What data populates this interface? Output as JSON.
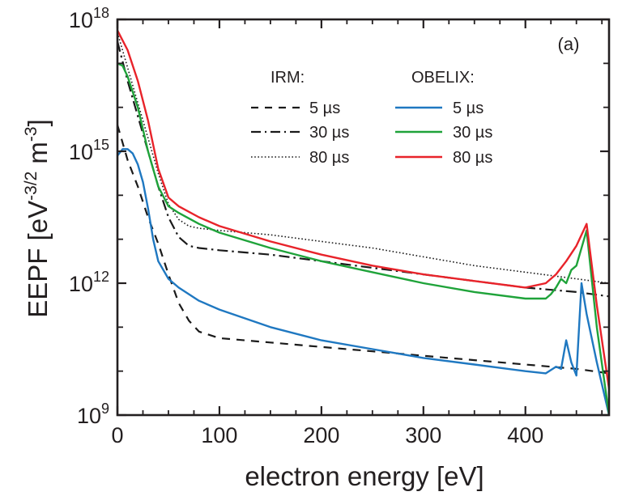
{
  "chart_data": {
    "type": "line",
    "title": "",
    "panel_label": "(a)",
    "xlabel": "electron energy [eV]",
    "ylabel": {
      "base": "EEPF [eV",
      "sup1": "-3/2",
      "mid": " m",
      "sup2": "-3",
      "end": "]"
    },
    "xscale": "linear",
    "yscale": "log",
    "xlim": [
      0,
      482
    ],
    "ylim": [
      1000000000.0,
      1e+18
    ],
    "xticks": [
      0,
      100,
      200,
      300,
      400
    ],
    "xtick_labels": [
      "0",
      "100",
      "200",
      "300",
      "400"
    ],
    "x_minor_step": 25,
    "yticks": [
      {
        "value": 1000000000.0,
        "base": "10",
        "exp": "9"
      },
      {
        "value": 1000000000000.0,
        "base": "10",
        "exp": "12"
      },
      {
        "value": 1000000000000000.0,
        "base": "10",
        "exp": "15"
      },
      {
        "value": 1e+18,
        "base": "10",
        "exp": "18"
      }
    ],
    "y_minor_exponents": [
      10,
      11,
      13,
      14,
      16,
      17
    ],
    "grid": false,
    "legend": {
      "position": "top-right",
      "groups": [
        {
          "title": "IRM:",
          "entries": [
            {
              "label": "5 µs",
              "series": "IRM 5 µs"
            },
            {
              "label": "30 µs",
              "series": "IRM 30 µs"
            },
            {
              "label": "80 µs",
              "series": "IRM 80 µs"
            }
          ]
        },
        {
          "title": "OBELIX:",
          "entries": [
            {
              "label": "5 µs",
              "series": "OBELIX 5 µs"
            },
            {
              "label": "30 µs",
              "series": "OBELIX 30 µs"
            },
            {
              "label": "80 µs",
              "series": "OBELIX 80 µs"
            }
          ]
        }
      ]
    },
    "series": [
      {
        "name": "IRM 5 µs",
        "color": "#1a1a1a",
        "style": "dashed",
        "x": [
          0,
          10,
          20,
          30,
          40,
          50,
          60,
          70,
          80,
          100,
          150,
          200,
          250,
          300,
          350,
          400,
          450,
          482
        ],
        "log10y": [
          15.6,
          14.8,
          14.2,
          13.5,
          12.9,
          12.2,
          11.55,
          11.15,
          10.9,
          10.75,
          10.65,
          10.55,
          10.45,
          10.35,
          10.25,
          10.15,
          10.05,
          9.95
        ]
      },
      {
        "name": "IRM 30 µs",
        "color": "#1a1a1a",
        "style": "dashdot",
        "x": [
          0,
          10,
          20,
          30,
          40,
          50,
          60,
          70,
          80,
          100,
          150,
          200,
          250,
          300,
          350,
          400,
          450,
          482
        ],
        "log10y": [
          17.5,
          16.6,
          15.8,
          15.0,
          14.2,
          13.5,
          13.05,
          12.85,
          12.8,
          12.75,
          12.65,
          12.5,
          12.35,
          12.2,
          12.05,
          11.9,
          11.8,
          11.7
        ]
      },
      {
        "name": "IRM 80 µs",
        "color": "#1a1a1a",
        "style": "dotted",
        "x": [
          0,
          10,
          20,
          30,
          40,
          50,
          60,
          70,
          80,
          100,
          150,
          200,
          250,
          300,
          350,
          400,
          450,
          482
        ],
        "log10y": [
          17.7,
          16.9,
          16.1,
          15.3,
          14.5,
          13.8,
          13.45,
          13.3,
          13.25,
          13.2,
          13.1,
          12.95,
          12.8,
          12.6,
          12.4,
          12.25,
          12.1,
          12.0
        ]
      },
      {
        "name": "OBELIX 5 µs",
        "color": "#1f78c1",
        "style": "solid",
        "x": [
          0,
          5,
          10,
          15,
          20,
          25,
          30,
          35,
          40,
          50,
          60,
          80,
          100,
          150,
          200,
          250,
          300,
          350,
          400,
          420,
          430,
          435,
          440,
          445,
          450,
          455,
          460,
          470,
          482
        ],
        "log10y": [
          14.9,
          15.05,
          15.05,
          14.95,
          14.7,
          14.3,
          13.7,
          13.0,
          12.5,
          12.1,
          11.9,
          11.6,
          11.4,
          11.0,
          10.7,
          10.5,
          10.3,
          10.15,
          10.0,
          9.95,
          10.1,
          10.05,
          10.7,
          10.2,
          9.9,
          12.0,
          11.3,
          10.2,
          9.0
        ]
      },
      {
        "name": "OBELIX 30 µs",
        "color": "#1fa33a",
        "style": "solid",
        "x": [
          0,
          5,
          10,
          15,
          20,
          25,
          30,
          40,
          50,
          60,
          80,
          100,
          150,
          200,
          250,
          300,
          350,
          400,
          420,
          425,
          430,
          435,
          440,
          445,
          450,
          460,
          470,
          482
        ],
        "log10y": [
          17.0,
          16.95,
          16.7,
          16.35,
          16.0,
          15.5,
          15.0,
          14.2,
          13.75,
          13.6,
          13.35,
          13.15,
          12.8,
          12.5,
          12.25,
          12.0,
          11.8,
          11.65,
          11.65,
          11.75,
          11.9,
          12.1,
          12.0,
          12.3,
          12.4,
          13.2,
          11.0,
          9.0
        ]
      },
      {
        "name": "OBELIX 80 µs",
        "color": "#e8232a",
        "style": "solid",
        "x": [
          0,
          10,
          20,
          30,
          40,
          50,
          60,
          80,
          100,
          150,
          200,
          250,
          300,
          350,
          400,
          420,
          430,
          440,
          450,
          460,
          470,
          482
        ],
        "log10y": [
          17.75,
          17.3,
          16.6,
          15.7,
          14.6,
          13.95,
          13.75,
          13.5,
          13.3,
          12.95,
          12.65,
          12.4,
          12.2,
          12.05,
          11.9,
          12.0,
          12.2,
          12.5,
          12.85,
          13.35,
          11.5,
          9.6
        ]
      }
    ]
  }
}
